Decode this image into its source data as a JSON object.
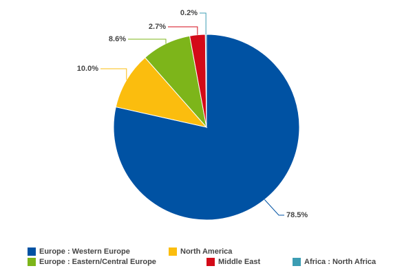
{
  "chart_data": {
    "type": "pie",
    "categories": [
      "Europe : Western Europe",
      "North America",
      "Europe : Eastern/Central Europe",
      "Middle East",
      "Africa : North Africa"
    ],
    "values": [
      78.5,
      10.0,
      8.6,
      2.7,
      0.2
    ],
    "value_labels": [
      "78.5%",
      "10.0%",
      "8.6%",
      "2.7%",
      "0.2%"
    ],
    "colors": [
      "#0052a3",
      "#fbbd0e",
      "#7db51a",
      "#d30a18",
      "#3c9db3"
    ]
  }
}
